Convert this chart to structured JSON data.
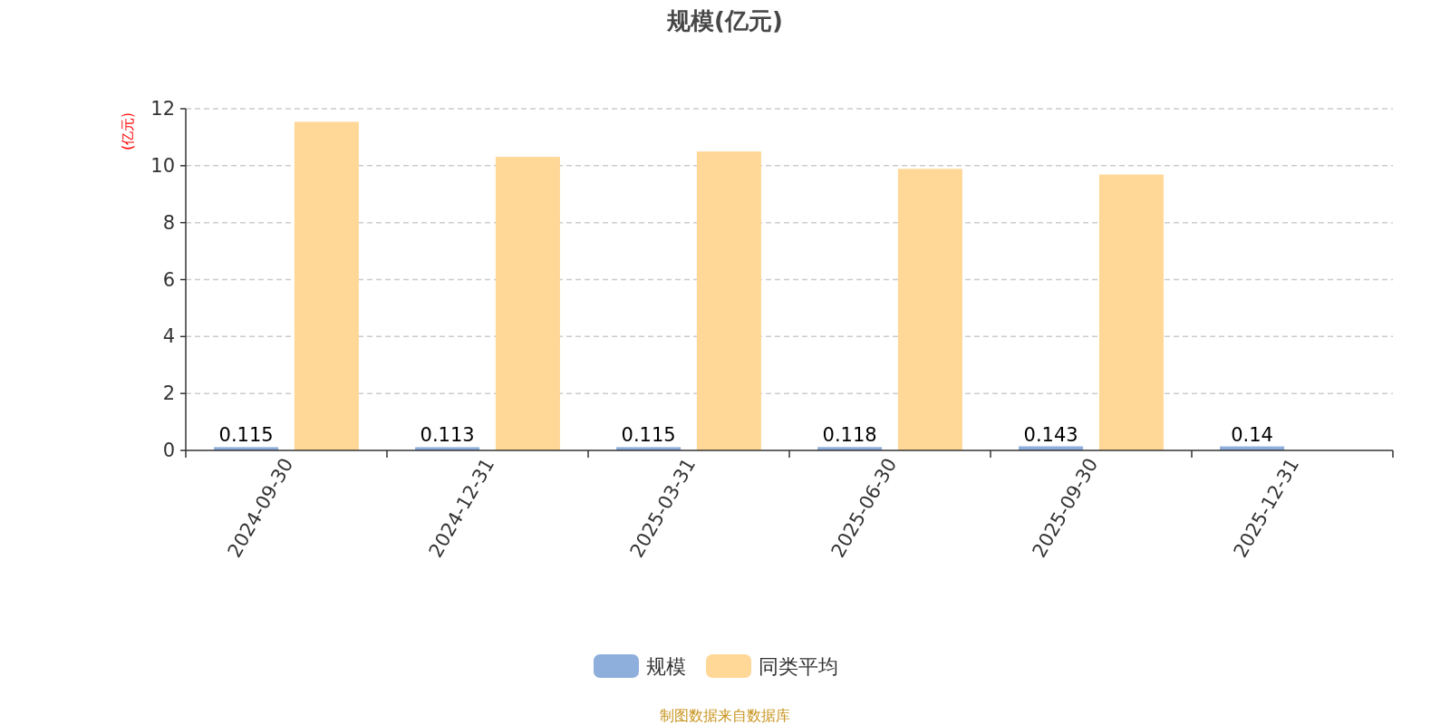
{
  "chart_data": {
    "type": "bar",
    "title": "规模(亿元)",
    "ylabel": "(亿元)",
    "categories": [
      "2024-09-30",
      "2024-12-31",
      "2025-03-31",
      "2025-06-30",
      "2025-09-30",
      "2025-12-31"
    ],
    "series": [
      {
        "name": "规模",
        "color": "#8eaedc",
        "values": [
          0.115,
          0.113,
          0.115,
          0.118,
          0.143,
          0.14
        ],
        "value_labels": [
          "0.115",
          "0.113",
          "0.115",
          "0.118",
          "0.143",
          "0.14"
        ]
      },
      {
        "name": "同类平均",
        "color": "#ffd898",
        "values": [
          11.54,
          10.31,
          10.5,
          9.89,
          9.69,
          null
        ]
      }
    ],
    "ylim": [
      0,
      12
    ],
    "yticks": [
      0,
      2,
      4,
      6,
      8,
      10,
      12
    ],
    "grid": "y",
    "legend": "bottom",
    "annotations": [
      "制图数据来自数据库"
    ]
  }
}
